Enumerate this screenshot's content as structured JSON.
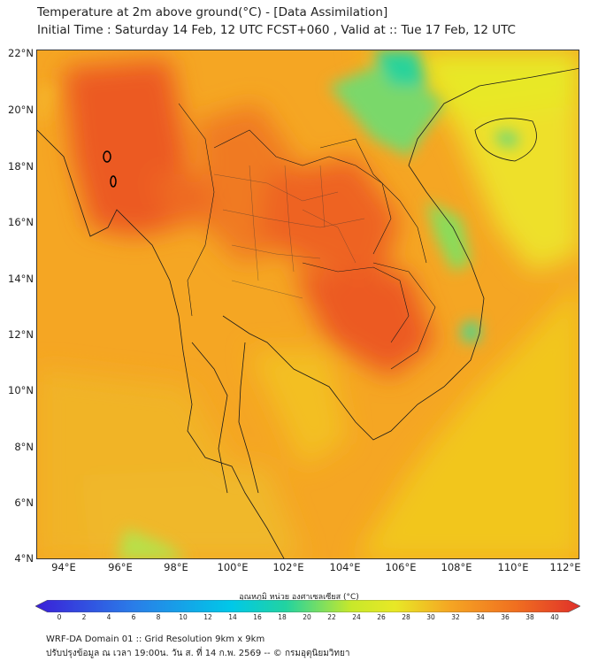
{
  "title": {
    "line1": "Temperature at 2m above ground(°C) - [Data Assimilation]",
    "line2": "Initial Time : Saturday 14 Feb, 12 UTC FCST+060 , Valid at :: Tue 17 Feb, 12 UTC"
  },
  "map": {
    "lat_labels": [
      "22°N",
      "20°N",
      "18°N",
      "16°N",
      "14°N",
      "12°N",
      "10°N",
      "8°N",
      "6°N",
      "4°N"
    ],
    "lon_labels": [
      "94°E",
      "96°E",
      "98°E",
      "100°E",
      "102°E",
      "104°E",
      "106°E",
      "108°E",
      "110°E",
      "112°E"
    ],
    "lat_range": [
      4,
      22
    ],
    "lon_range": [
      93,
      112.3
    ]
  },
  "colorbar": {
    "title": "อุณหภูมิ หน่วย องศาเซลเซียส (°C)",
    "ticks": [
      "0",
      "2",
      "4",
      "6",
      "8",
      "10",
      "12",
      "14",
      "16",
      "18",
      "20",
      "22",
      "24",
      "26",
      "28",
      "30",
      "32",
      "34",
      "36",
      "38",
      "40"
    ],
    "colors": {
      "cold": "#3a1fd8",
      "cool": "#00c8e8",
      "mild": "#22d3a0",
      "warm_yellow": "#e8e826",
      "orange": "#f5a623",
      "hot_orange": "#f07020",
      "hot": "#e0302a"
    }
  },
  "footer": {
    "line1": "WRF-DA Domain 01 :: Grid Resolution 9km x 9km",
    "line2": "ปรับปรุงข้อมูล ณ เวลา 19:00น. วัน ส. ที่ 14 ก.พ. 2569 -- © กรมอุตุนิยมวิทยา"
  }
}
